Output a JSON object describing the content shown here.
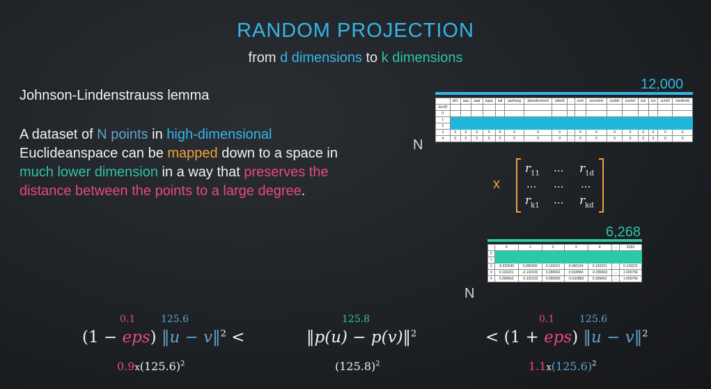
{
  "title": "RANDOM PROJECTION",
  "subtitle": {
    "from": "from",
    "d_dims": "d dimensions",
    "to": "to",
    "k_dims": "k dimensions"
  },
  "lemma_title": "Johnson-Lindenstrauss lemma",
  "paragraph": [
    {
      "text": "A dataset of ",
      "color": "default"
    },
    {
      "text": "N points",
      "color": "grayblue"
    },
    {
      "text": " in ",
      "color": "default"
    },
    {
      "text": "high-dimensional",
      "color": "blue"
    },
    {
      "text": " Euclideanspace can be ",
      "color": "default"
    },
    {
      "text": "mapped",
      "color": "orange"
    },
    {
      "text": " down to a space in ",
      "color": "default"
    },
    {
      "text": "much lower dimension",
      "color": "teal"
    },
    {
      "text": " in a way that ",
      "color": "default"
    },
    {
      "text": "preserves the distance between the points to a large degree",
      "color": "pink"
    },
    {
      "text": ".",
      "color": "default"
    }
  ],
  "colors": {
    "blue": "#35b7e6",
    "teal": "#2fc4a0",
    "orange": "#f0a23a",
    "pink": "#e84a78",
    "grayblue": "#5fa5c8"
  },
  "table1": {
    "width_label": "12,000",
    "rows_label": "N",
    "headers": [
      "",
      "a01",
      "aaa",
      "aaai",
      "aapa",
      "aal",
      "aazhang",
      "abandonment",
      "abbott",
      "...",
      "zorn",
      "zornetzer",
      "zoubin",
      "zucker",
      "zue",
      "zur",
      "zurich",
      "zwolinski"
    ],
    "rows": [
      [
        "docID",
        "",
        "",
        "",
        "",
        "",
        "",
        "",
        "",
        "",
        "",
        "",
        "",
        "",
        "",
        "",
        "",
        ""
      ],
      [
        "0",
        "",
        "",
        "",
        "",
        "",
        "",
        "",
        "",
        "",
        "",
        "",
        "",
        "",
        "",
        "",
        "",
        ""
      ],
      [
        "1",
        "",
        "",
        "",
        "",
        "",
        "",
        "",
        "",
        "",
        "",
        "",
        "",
        "",
        "",
        "",
        "",
        ""
      ],
      [
        "2",
        "",
        "",
        "",
        "",
        "",
        "",
        "",
        "",
        "",
        "",
        "",
        "",
        "",
        "",
        "",
        "",
        ""
      ],
      [
        "3",
        "0",
        "0",
        "0",
        "0",
        "0",
        "0",
        "0",
        "0",
        "...",
        "0",
        "0",
        "0",
        "0",
        "0",
        "0",
        "0",
        "0"
      ],
      [
        "4",
        "0",
        "0",
        "0",
        "0",
        "0",
        "0",
        "0",
        "0",
        "...",
        "0",
        "0",
        "0",
        "0",
        "0",
        "0",
        "0",
        "0"
      ]
    ]
  },
  "multiply_symbol": "x",
  "matrix": {
    "r11": "r",
    "r11_sub": "11",
    "r1d": "r",
    "r1d_sub": "1d",
    "rk1": "r",
    "rk1_sub": "k1",
    "rkd": "r",
    "rkd_sub": "kd",
    "dots": "..."
  },
  "table2": {
    "width_label": "6,268",
    "rows_label": "N",
    "headers": [
      "",
      "0",
      "1",
      "2",
      "3",
      "4",
      "...",
      "6263"
    ],
    "rows": [
      [
        "0",
        "",
        "",
        "",
        "",
        "",
        "",
        ""
      ],
      [
        "1",
        "",
        "",
        "",
        "",
        "",
        "",
        ""
      ],
      [
        "2",
        "-0.932545",
        "0.000000",
        "0.133221",
        "0.000164",
        "0.133221",
        "...",
        "0.133221"
      ],
      [
        "3",
        "0.133221",
        "-2.131532",
        "0.399662",
        "0.532883",
        "-0.399662",
        "...",
        "1.065766"
      ],
      [
        "4",
        "0.399662",
        "-2.131532",
        "0.000000",
        "-0.532883",
        "0.399662",
        "...",
        "1.065766"
      ]
    ]
  },
  "formulas": {
    "left": {
      "eps_val": "0.1",
      "dist_val": "125.6",
      "one_minus": "(1 − ",
      "eps": "eps",
      "close": ")",
      "norm": "‖u − v‖",
      "sq": "2",
      "lt": "<",
      "calc_coef": "0.9",
      "calc_x": "x",
      "calc_base": "(125.6)",
      "calc_sq": "2"
    },
    "middle": {
      "dist_val": "125.8",
      "norm": "‖p(u) − p(v)‖",
      "sq": "2",
      "calc_base": "(125.8)",
      "calc_sq": "2"
    },
    "right": {
      "eps_val": "0.1",
      "dist_val": "125.6",
      "lt": "<",
      "one_plus": "(1 + ",
      "eps": "eps",
      "close": ")",
      "norm": "‖u − v‖",
      "sq": "2",
      "calc_coef": "1.1",
      "calc_x": "x",
      "calc_base": "(125.6)",
      "calc_sq": "2"
    }
  }
}
